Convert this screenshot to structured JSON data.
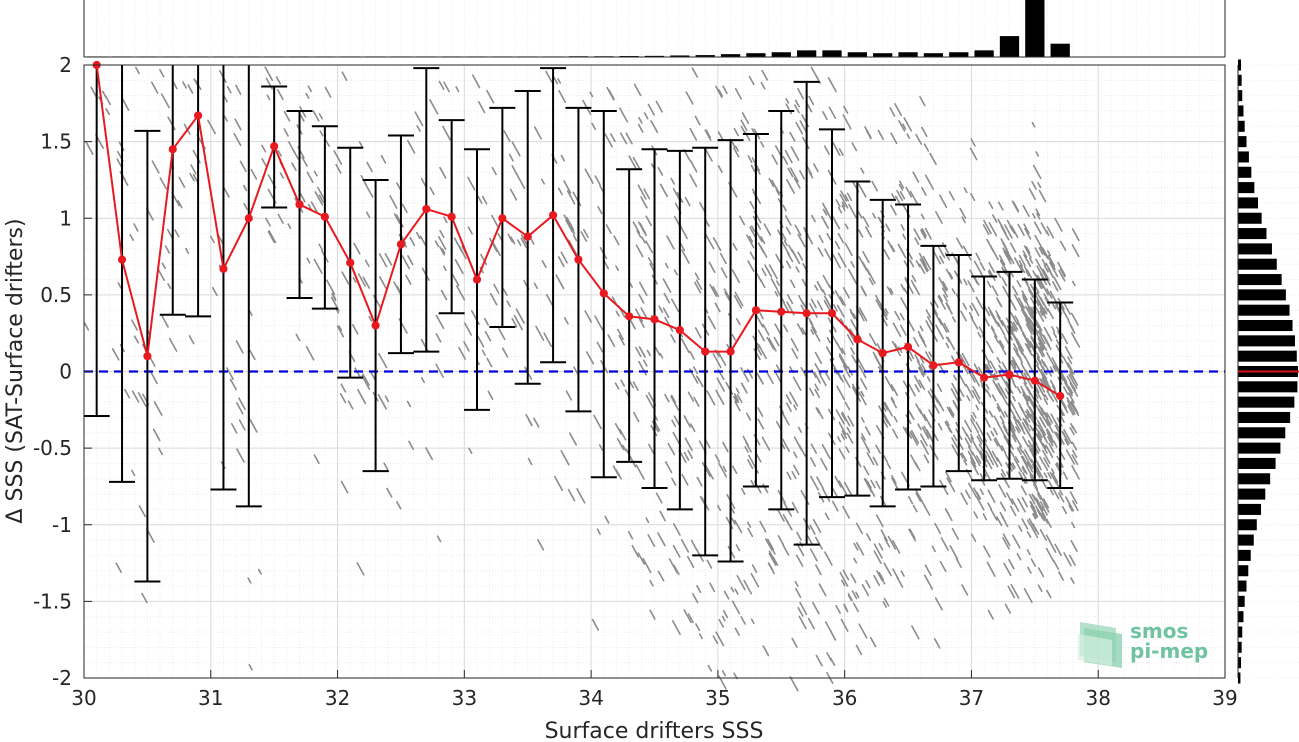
{
  "chart_data": {
    "type": "scatter",
    "xlabel": "Surface drifters SSS",
    "ylabel": "Δ SSS (SAT-Surface drifters)",
    "xlim": [
      30,
      39
    ],
    "ylim": [
      -2,
      2
    ],
    "xticks": [
      "30",
      "31",
      "32",
      "33",
      "34",
      "35",
      "36",
      "37",
      "38",
      "39"
    ],
    "yticks": [
      "-2",
      "-1.5",
      "-1",
      "-0.5",
      "0",
      "0.5",
      "1",
      "1.5",
      "2"
    ],
    "grid": true,
    "reference_line": {
      "y": 0,
      "style": "dashed",
      "color": "#0000dd"
    },
    "series": [
      {
        "kind": "binned-mean-with-errorbars",
        "color": "#e8191f",
        "x": [
          30.1,
          30.3,
          30.5,
          30.7,
          30.9,
          31.1,
          31.3,
          31.5,
          31.7,
          31.9,
          32.1,
          32.3,
          32.5,
          32.7,
          32.9,
          33.1,
          33.3,
          33.5,
          33.7,
          33.9,
          34.1,
          34.3,
          34.5,
          34.7,
          34.9,
          35.1,
          35.3,
          35.5,
          35.7,
          35.9,
          36.1,
          36.3,
          36.5,
          36.7,
          36.9,
          37.1,
          37.3,
          37.5,
          37.7
        ],
        "mean": [
          2.0,
          0.73,
          0.1,
          1.45,
          1.67,
          0.67,
          1.0,
          1.47,
          1.09,
          1.01,
          0.71,
          0.3,
          0.83,
          1.06,
          1.01,
          0.6,
          1.0,
          0.88,
          1.02,
          0.73,
          0.51,
          0.36,
          0.34,
          0.27,
          0.13,
          0.13,
          0.4,
          0.39,
          0.38,
          0.38,
          0.21,
          0.12,
          0.16,
          0.04,
          0.06,
          -0.04,
          -0.02,
          -0.06,
          -0.16
        ],
        "lower": [
          -0.29,
          -0.72,
          -1.37,
          0.37,
          0.36,
          -0.77,
          -0.88,
          1.07,
          0.48,
          0.41,
          -0.04,
          -0.65,
          0.12,
          0.13,
          0.38,
          -0.25,
          0.29,
          -0.08,
          0.06,
          -0.26,
          -0.69,
          -0.59,
          -0.76,
          -0.9,
          -1.2,
          -1.24,
          -0.75,
          -0.9,
          -1.13,
          -0.82,
          -0.81,
          -0.88,
          -0.77,
          -0.75,
          -0.65,
          -0.71,
          -0.7,
          -0.71,
          -0.76
        ],
        "upper": [
          2.0,
          2.0,
          1.57,
          2.0,
          2.0,
          2.0,
          2.0,
          1.86,
          1.7,
          1.6,
          1.46,
          1.25,
          1.54,
          1.98,
          1.64,
          1.45,
          1.72,
          1.83,
          1.98,
          1.72,
          1.7,
          1.32,
          1.45,
          1.44,
          1.46,
          1.51,
          1.55,
          1.7,
          1.89,
          1.58,
          1.24,
          1.12,
          1.09,
          0.82,
          0.76,
          0.62,
          0.65,
          0.6,
          0.45
        ]
      }
    ],
    "top_histogram": {
      "bins": [
        30.1,
        30.3,
        30.5,
        30.7,
        30.9,
        31.1,
        31.3,
        31.5,
        31.7,
        31.9,
        32.1,
        32.3,
        32.5,
        32.7,
        32.9,
        33.1,
        33.3,
        33.5,
        33.7,
        33.9,
        34.1,
        34.3,
        34.5,
        34.7,
        34.9,
        35.1,
        35.3,
        35.5,
        35.7,
        35.9,
        36.1,
        36.3,
        36.5,
        36.7,
        36.9,
        37.1,
        37.3,
        37.5,
        37.7
      ],
      "counts": [
        0.3,
        0.3,
        0.3,
        0.3,
        0.3,
        0.3,
        0.3,
        0.3,
        0.3,
        0.3,
        0.3,
        0.3,
        0.3,
        0.3,
        0.3,
        0.3,
        0.3,
        0.3,
        0.3,
        0.4,
        0.4,
        0.5,
        0.6,
        0.8,
        1.0,
        1.5,
        2.0,
        2.5,
        3.5,
        3.5,
        2.5,
        2.0,
        2.5,
        2.0,
        2.5,
        3.5,
        11.0,
        30.0,
        7.0
      ]
    },
    "right_histogram": {
      "bins": [
        2.0,
        1.9,
        1.8,
        1.7,
        1.6,
        1.5,
        1.4,
        1.3,
        1.2,
        1.1,
        1.0,
        0.9,
        0.8,
        0.7,
        0.6,
        0.5,
        0.4,
        0.3,
        0.2,
        0.1,
        0.0,
        -0.1,
        -0.2,
        -0.3,
        -0.4,
        -0.5,
        -0.6,
        -0.7,
        -0.8,
        -0.9,
        -1.0,
        -1.1,
        -1.2,
        -1.3,
        -1.4,
        -1.5,
        -1.6,
        -1.7,
        -1.8,
        -1.9,
        -2.0
      ],
      "counts": [
        0.5,
        0.6,
        0.7,
        0.9,
        1.1,
        1.4,
        1.8,
        2.2,
        2.7,
        3.3,
        3.9,
        4.7,
        5.6,
        6.4,
        7.2,
        7.9,
        8.5,
        9.0,
        9.4,
        9.7,
        9.9,
        9.8,
        9.3,
        8.6,
        7.8,
        7.0,
        6.2,
        5.3,
        4.5,
        3.8,
        3.1,
        2.6,
        2.1,
        1.7,
        1.4,
        1.1,
        0.9,
        0.7,
        0.6,
        0.5,
        0.4
      ]
    },
    "mean_marker_right_histogram": 0.0
  },
  "logo": {
    "line1": "smos",
    "line2": "pi-mep",
    "color": "#6fc3a0"
  }
}
